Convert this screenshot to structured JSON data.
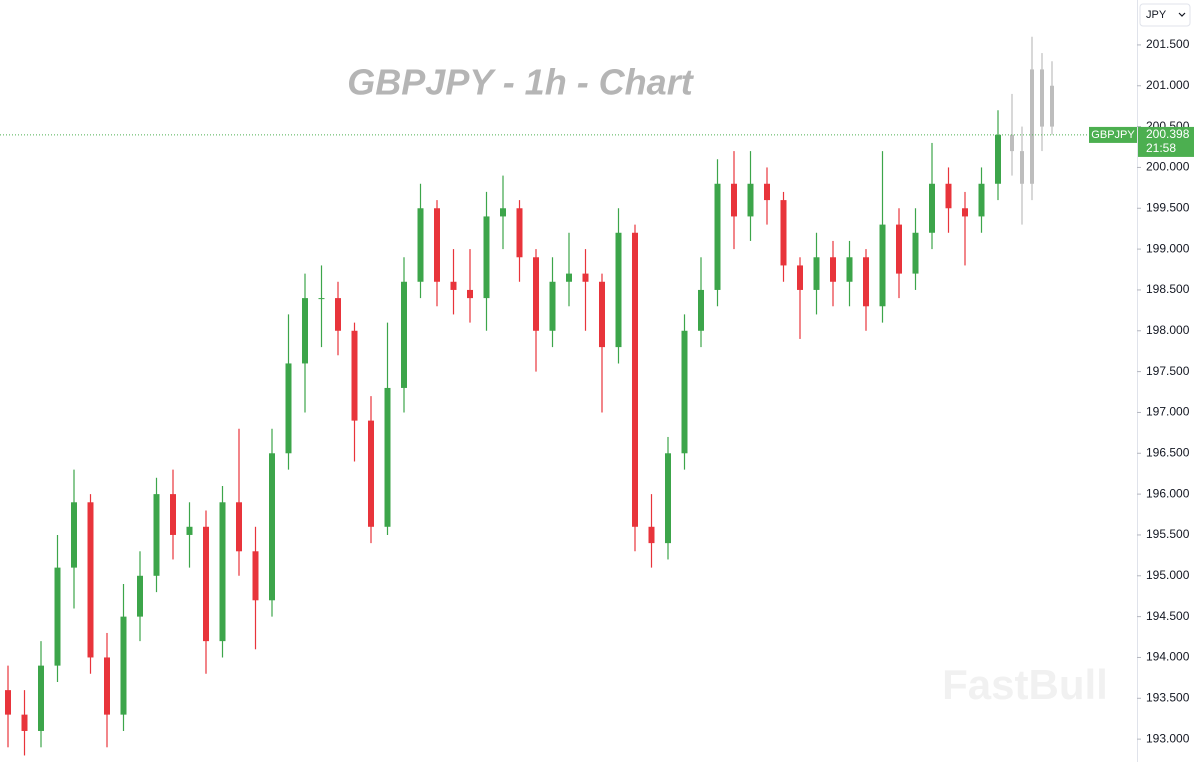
{
  "chart_data": {
    "type": "candlestick",
    "title": "GBPJPY - 1h - Chart",
    "watermark": "FastBull",
    "currency": "JPY",
    "up_color": "#3ca54a",
    "down_color": "#e8343b",
    "ylim": [
      192.72,
      202.05
    ],
    "yticks": [
      {
        "value": 193,
        "label": "193.000"
      },
      {
        "value": 193.5,
        "label": "193.500"
      },
      {
        "value": 194,
        "label": "194.000"
      },
      {
        "value": 194.5,
        "label": "194.500"
      },
      {
        "value": 195,
        "label": "195.000"
      },
      {
        "value": 195.5,
        "label": "195.500"
      },
      {
        "value": 196,
        "label": "196.000"
      },
      {
        "value": 196.5,
        "label": "196.500"
      },
      {
        "value": 197,
        "label": "197.000"
      },
      {
        "value": 197.5,
        "label": "197.500"
      },
      {
        "value": 198,
        "label": "198.000"
      },
      {
        "value": 198.5,
        "label": "198.500"
      },
      {
        "value": 199,
        "label": "199.000"
      },
      {
        "value": 199.5,
        "label": "199.500"
      },
      {
        "value": 200,
        "label": "200.000"
      },
      {
        "value": 200.5,
        "label": "200.500"
      },
      {
        "value": 201,
        "label": "201.000"
      },
      {
        "value": 201.5,
        "label": "201.500"
      }
    ],
    "open": [
      193.6,
      193.3,
      193.1,
      193.9,
      195.1,
      195.9,
      194.0,
      193.3,
      194.5,
      195.0,
      196.0,
      195.5,
      195.6,
      194.2,
      195.9,
      195.3,
      194.7,
      196.5,
      197.6,
      198.4,
      198.4,
      198.0,
      196.9,
      195.6,
      197.3,
      198.6,
      199.5,
      198.6,
      198.5,
      198.4,
      199.4,
      199.5,
      198.9,
      198.0,
      198.6,
      198.7,
      198.6,
      197.8,
      199.2,
      195.6,
      195.4,
      196.5,
      198.0,
      198.5,
      199.8,
      199.4,
      199.8,
      199.6,
      198.8,
      198.5,
      198.9,
      198.6,
      198.9,
      198.3,
      199.3,
      198.7,
      199.2,
      199.8,
      199.5,
      199.4,
      199.8
    ],
    "high": [
      193.9,
      193.6,
      194.2,
      195.5,
      196.3,
      196.0,
      194.3,
      194.9,
      195.3,
      196.2,
      196.3,
      195.9,
      195.8,
      196.1,
      196.8,
      195.6,
      196.8,
      198.2,
      198.7,
      198.8,
      198.6,
      198.1,
      197.2,
      198.1,
      198.9,
      199.8,
      199.6,
      199.0,
      199.0,
      199.7,
      199.9,
      199.6,
      199.0,
      198.9,
      199.2,
      199.0,
      198.7,
      199.5,
      199.3,
      196.0,
      196.7,
      198.2,
      198.9,
      200.1,
      200.2,
      200.2,
      200.0,
      199.7,
      198.9,
      199.2,
      199.1,
      199.1,
      199.0,
      200.2,
      199.5,
      199.5,
      200.3,
      200.0,
      199.7,
      200.0,
      200.7
    ],
    "low": [
      192.9,
      192.8,
      192.9,
      193.7,
      194.6,
      193.8,
      192.9,
      193.1,
      194.2,
      194.8,
      195.2,
      195.1,
      193.8,
      194.0,
      195.0,
      194.1,
      194.5,
      196.3,
      197.0,
      197.8,
      197.7,
      196.4,
      195.4,
      195.5,
      197.0,
      198.4,
      198.3,
      198.2,
      198.1,
      198.0,
      199.0,
      198.6,
      197.5,
      197.8,
      198.3,
      198.0,
      197.0,
      197.6,
      195.3,
      195.1,
      195.2,
      196.3,
      197.8,
      198.3,
      199.0,
      199.1,
      199.3,
      198.6,
      197.9,
      198.2,
      198.3,
      198.3,
      198.0,
      198.1,
      198.4,
      198.5,
      199.0,
      199.2,
      198.8,
      199.2,
      199.6
    ],
    "close": [
      193.3,
      193.1,
      193.9,
      195.1,
      195.9,
      194.0,
      193.3,
      194.5,
      195.0,
      196.0,
      195.5,
      195.6,
      194.2,
      195.9,
      195.3,
      194.7,
      196.5,
      197.6,
      198.4,
      198.4,
      198.0,
      196.9,
      195.6,
      197.3,
      198.6,
      199.5,
      198.6,
      198.5,
      198.4,
      199.4,
      199.5,
      198.9,
      198.0,
      198.6,
      198.7,
      198.6,
      197.8,
      199.2,
      195.6,
      195.4,
      196.5,
      198.0,
      198.5,
      199.8,
      199.4,
      199.8,
      199.6,
      198.8,
      198.5,
      198.9,
      198.6,
      198.9,
      198.3,
      199.3,
      198.7,
      199.2,
      199.8,
      199.5,
      199.4,
      199.8,
      200.4
    ],
    "forecast": {
      "color": "#bdbdbd",
      "open": [
        200.4,
        200.2,
        199.8,
        201.2,
        200.5
      ],
      "high": [
        200.9,
        200.5,
        201.6,
        201.4,
        201.3
      ],
      "low": [
        199.9,
        199.3,
        199.6,
        200.2,
        200.4
      ],
      "close": [
        200.2,
        199.8,
        201.2,
        200.5,
        201.0
      ]
    },
    "last_price": {
      "symbol": "GBPJPY",
      "value": 200.398,
      "countdown": "21:58",
      "color": "#4caf50"
    }
  }
}
